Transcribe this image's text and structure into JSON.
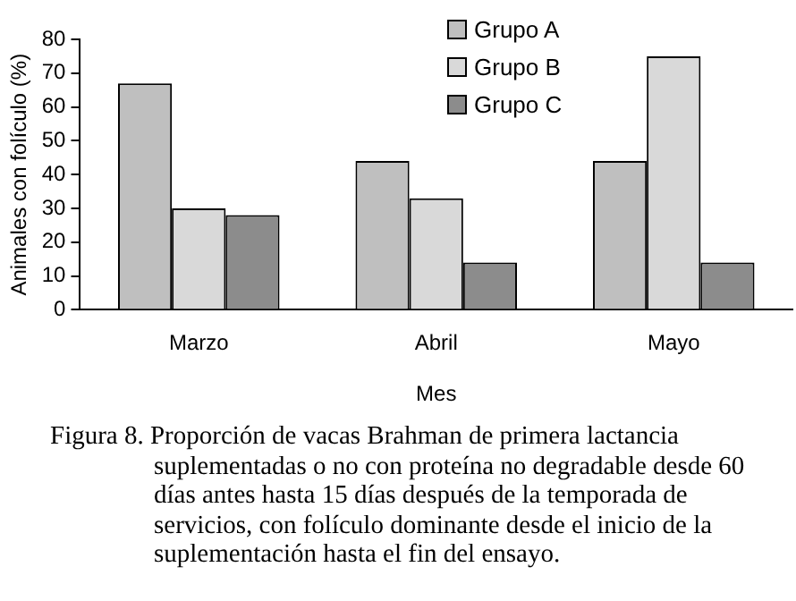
{
  "chart_data": {
    "type": "bar",
    "xlabel": "Mes",
    "ylabel": "Animales con folículo (%)",
    "categories": [
      "Marzo",
      "Abril",
      "Mayo"
    ],
    "series": [
      {
        "name": "Grupo A",
        "color": "#bfbfbf",
        "values": [
          67,
          44,
          44
        ]
      },
      {
        "name": "Grupo B",
        "color": "#d9d9d9",
        "values": [
          30,
          33,
          75
        ]
      },
      {
        "name": "Grupo C",
        "color": "#8c8c8c",
        "values": [
          28,
          14,
          14
        ]
      }
    ],
    "ylim": [
      0,
      80
    ],
    "yticks": [
      0,
      10,
      20,
      30,
      40,
      50,
      60,
      70,
      80
    ],
    "grid": false,
    "legend": "top right",
    "annotations": [
      "Figura 8.  Proporción de vacas Brahman de primera lactancia suplementadas o no con proteína no  degradable desde 60 días antes hasta 15 días después de la temporada de servicios, con folículo dominante desde el inicio de la suplementación hasta el fin del ensayo."
    ]
  }
}
